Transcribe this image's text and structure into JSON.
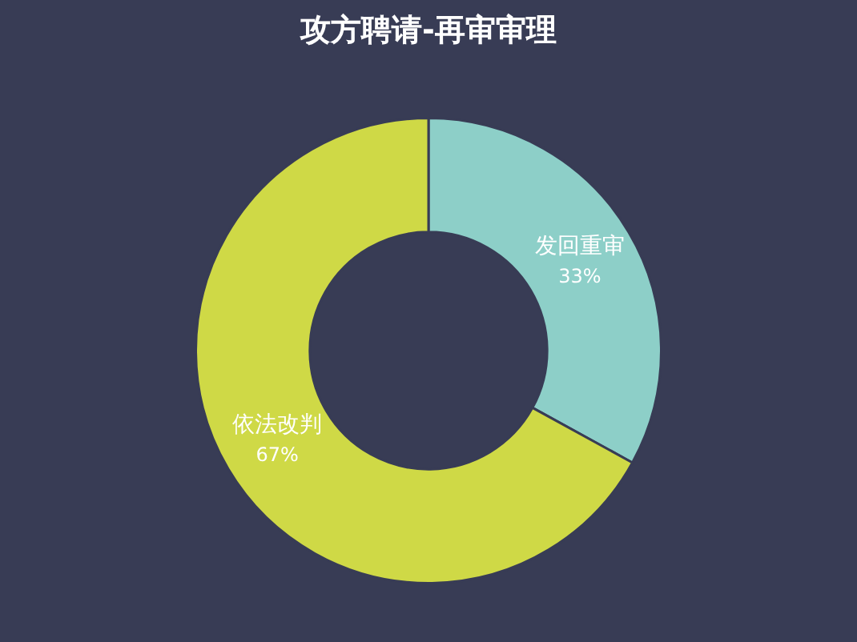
{
  "chart_data": {
    "type": "donut",
    "title": "攻方聘请-再审审理",
    "categories": [
      "发回重审",
      "依法改判"
    ],
    "values": [
      33,
      67
    ],
    "colors": [
      "#8dcfc8",
      "#cfd946"
    ],
    "value_labels": [
      "33%",
      "67%"
    ],
    "legend": false
  }
}
